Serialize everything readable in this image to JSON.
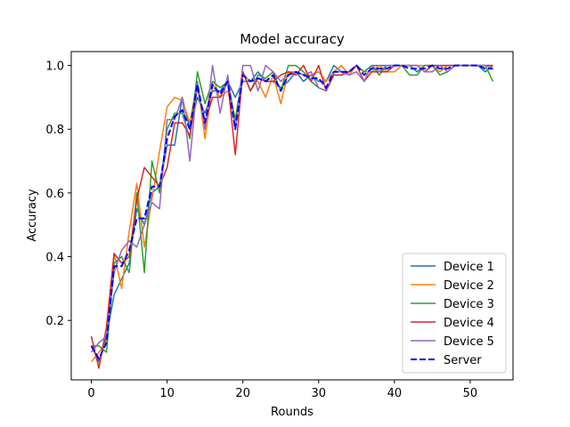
{
  "chart_data": {
    "type": "line",
    "title": "Model accuracy",
    "xlabel": "Rounds",
    "ylabel": "Accuracy",
    "xlim": [
      -2.65,
      55.65
    ],
    "ylim": [
      0.0135,
      1.0435
    ],
    "xticks": [
      0,
      10,
      20,
      30,
      40,
      50
    ],
    "yticks": [
      0.2,
      0.4,
      0.6,
      0.8,
      1.0
    ],
    "grid": false,
    "legend_position": "lower-right",
    "x": [
      0,
      1,
      2,
      3,
      4,
      5,
      6,
      7,
      8,
      9,
      10,
      11,
      12,
      13,
      14,
      15,
      16,
      17,
      18,
      19,
      20,
      21,
      22,
      23,
      24,
      25,
      26,
      27,
      28,
      29,
      30,
      31,
      32,
      33,
      34,
      35,
      36,
      37,
      38,
      39,
      40,
      41,
      42,
      43,
      44,
      45,
      46,
      47,
      48,
      49,
      50,
      51,
      52,
      53
    ],
    "series": [
      {
        "name": "Device 1",
        "color": "#1f77b4",
        "dashed": false,
        "values": [
          0.12,
          0.07,
          0.15,
          0.28,
          0.33,
          0.38,
          0.55,
          0.5,
          0.6,
          0.62,
          0.75,
          0.75,
          0.9,
          0.8,
          0.9,
          0.85,
          0.92,
          0.92,
          0.95,
          0.9,
          0.95,
          0.95,
          0.98,
          0.95,
          0.95,
          0.93,
          0.95,
          0.98,
          0.95,
          0.97,
          0.95,
          0.95,
          1.0,
          0.98,
          0.98,
          1.0,
          0.98,
          1.0,
          1.0,
          1.0,
          1.0,
          1.0,
          1.0,
          0.98,
          1.0,
          1.0,
          1.0,
          1.0,
          1.0,
          1.0,
          1.0,
          1.0,
          0.98,
          1.0
        ]
      },
      {
        "name": "Device 2",
        "color": "#ff7f0e",
        "dashed": false,
        "values": [
          0.07,
          0.1,
          0.13,
          0.41,
          0.3,
          0.48,
          0.63,
          0.43,
          0.58,
          0.73,
          0.87,
          0.9,
          0.89,
          0.82,
          0.95,
          0.77,
          0.94,
          0.9,
          0.92,
          0.83,
          0.97,
          0.95,
          0.95,
          0.9,
          0.97,
          0.88,
          0.98,
          0.98,
          0.97,
          0.97,
          0.98,
          0.95,
          0.98,
          1.0,
          0.97,
          1.0,
          0.98,
          0.98,
          1.0,
          0.98,
          0.98,
          1.0,
          1.0,
          1.0,
          1.0,
          1.0,
          0.98,
          1.0,
          1.0,
          1.0,
          1.0,
          1.0,
          1.0,
          1.0
        ]
      },
      {
        "name": "Device 3",
        "color": "#2ca02c",
        "dashed": false,
        "values": [
          0.12,
          0.12,
          0.1,
          0.38,
          0.4,
          0.35,
          0.6,
          0.35,
          0.7,
          0.6,
          0.8,
          0.85,
          0.85,
          0.77,
          0.98,
          0.88,
          0.95,
          0.93,
          0.95,
          0.83,
          0.98,
          0.92,
          0.97,
          0.96,
          0.98,
          0.92,
          1.0,
          1.0,
          0.98,
          0.95,
          0.93,
          0.92,
          0.97,
          0.97,
          0.98,
          1.0,
          0.98,
          1.0,
          0.97,
          1.0,
          1.0,
          1.0,
          0.97,
          0.97,
          1.0,
          1.0,
          0.97,
          0.98,
          1.0,
          1.0,
          1.0,
          1.0,
          1.0,
          0.95
        ]
      },
      {
        "name": "Device 4",
        "color": "#d62728",
        "dashed": false,
        "values": [
          0.15,
          0.05,
          0.18,
          0.41,
          0.38,
          0.4,
          0.58,
          0.68,
          0.65,
          0.62,
          0.68,
          0.82,
          0.82,
          0.78,
          0.93,
          0.82,
          0.9,
          0.9,
          0.95,
          0.72,
          0.98,
          0.92,
          0.96,
          0.95,
          0.95,
          0.97,
          0.98,
          0.97,
          1.0,
          0.95,
          1.0,
          0.92,
          0.97,
          0.97,
          0.98,
          1.0,
          0.95,
          0.98,
          0.98,
          0.98,
          1.0,
          1.0,
          1.0,
          1.0,
          0.98,
          1.0,
          1.0,
          1.0,
          1.0,
          1.0,
          1.0,
          1.0,
          1.0,
          1.0
        ]
      },
      {
        "name": "Device 5",
        "color": "#9467bd",
        "dashed": false,
        "values": [
          0.1,
          0.13,
          0.15,
          0.35,
          0.42,
          0.45,
          0.43,
          0.5,
          0.57,
          0.55,
          0.83,
          0.83,
          0.9,
          0.7,
          0.95,
          0.8,
          1.0,
          0.85,
          0.97,
          0.8,
          1.0,
          1.0,
          0.92,
          1.0,
          0.98,
          0.95,
          0.97,
          0.98,
          0.97,
          0.98,
          0.93,
          0.92,
          0.98,
          0.98,
          0.97,
          0.98,
          0.95,
          1.0,
          0.98,
          1.0,
          1.0,
          1.0,
          1.0,
          1.0,
          0.98,
          0.98,
          1.0,
          0.98,
          1.0,
          1.0,
          1.0,
          1.0,
          1.0,
          0.99
        ]
      },
      {
        "name": "Server",
        "color": "#0000ff",
        "dashed": true,
        "values": [
          0.12,
          0.08,
          0.13,
          0.37,
          0.37,
          0.42,
          0.52,
          0.52,
          0.62,
          0.62,
          0.77,
          0.84,
          0.86,
          0.8,
          0.94,
          0.82,
          0.94,
          0.91,
          0.95,
          0.8,
          0.97,
          0.95,
          0.96,
          0.95,
          0.97,
          0.92,
          0.97,
          0.98,
          0.97,
          0.96,
          0.96,
          0.93,
          0.98,
          0.98,
          0.98,
          1.0,
          0.97,
          0.99,
          0.99,
          0.99,
          1.0,
          1.0,
          0.99,
          0.99,
          0.99,
          1.0,
          0.99,
          0.99,
          1.0,
          1.0,
          1.0,
          1.0,
          0.99,
          0.99
        ]
      }
    ]
  }
}
